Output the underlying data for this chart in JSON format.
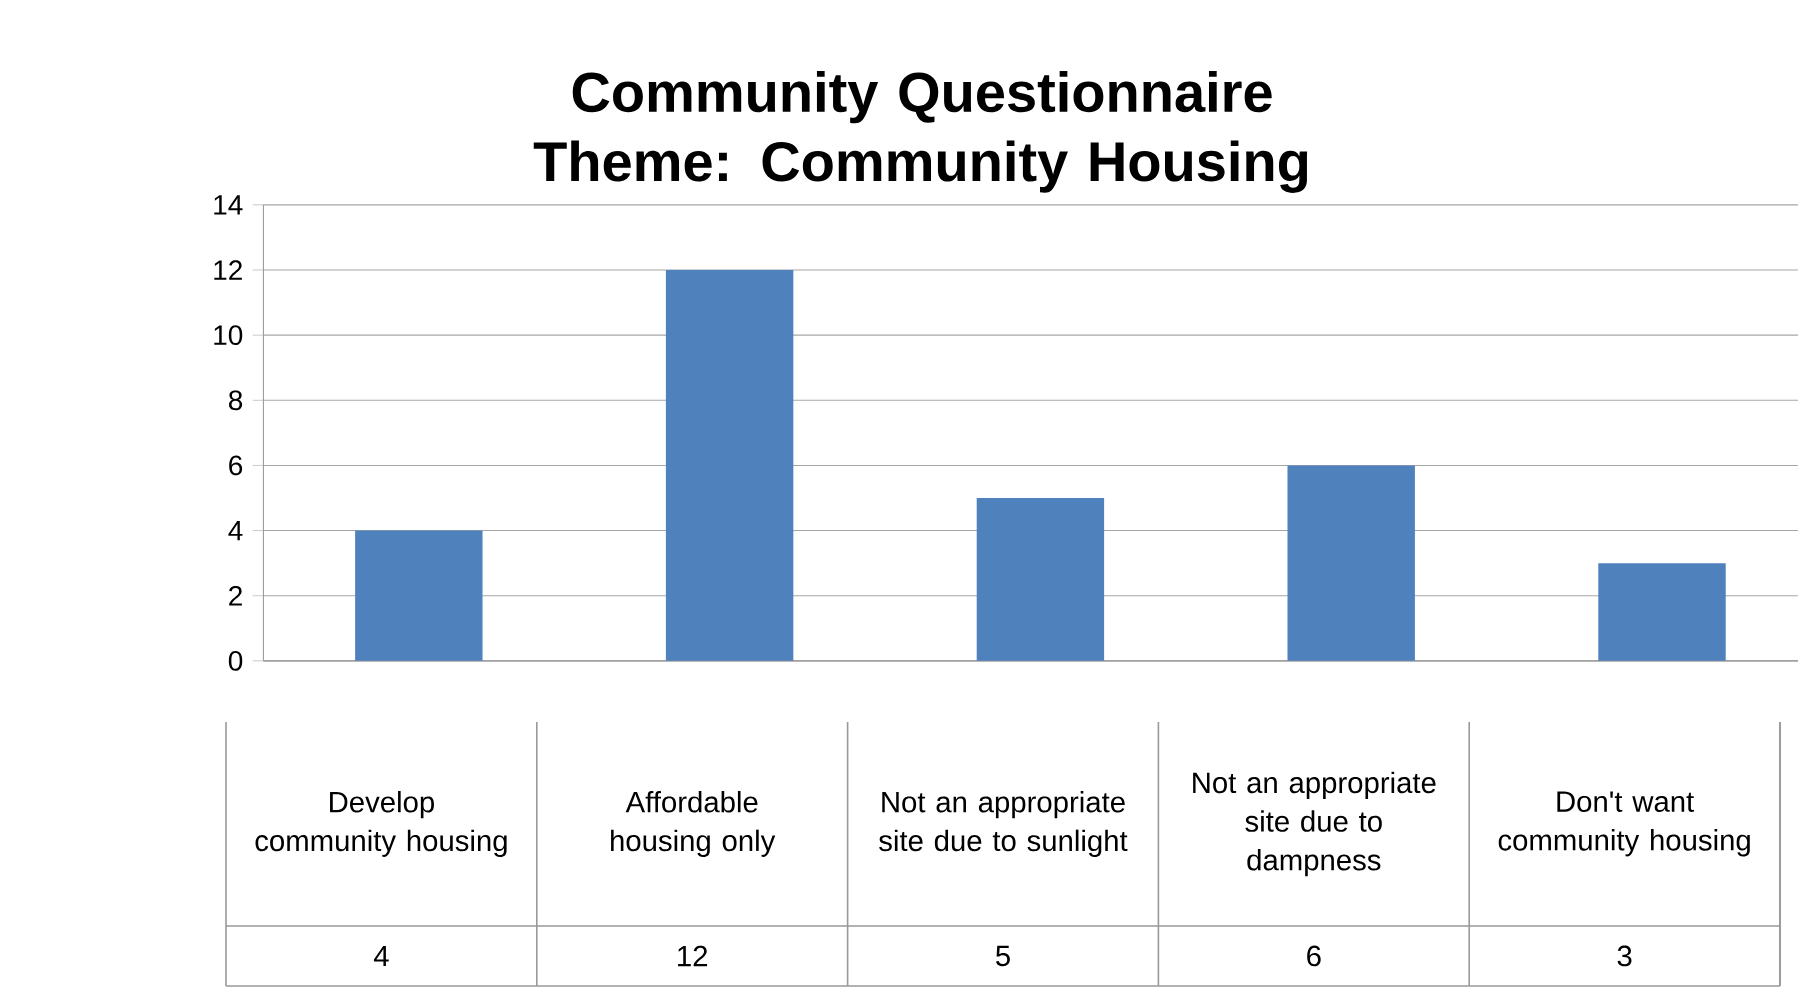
{
  "chart_data": {
    "type": "bar",
    "title": "Community Questionnaire Theme: Community Housing",
    "categories": [
      "Develop community housing",
      "Affordable housing only",
      "Not an appropriate site due to sunlight",
      "Not an appropriate site due to dampness",
      "Don't want community housing"
    ],
    "values": [
      4,
      12,
      5,
      6,
      3
    ],
    "color": "#4f81bd",
    "ylim": [
      0,
      14
    ],
    "yticks": [
      0,
      2,
      4,
      6,
      8,
      10,
      12,
      14
    ],
    "grid": "y",
    "data_labels": true
  }
}
